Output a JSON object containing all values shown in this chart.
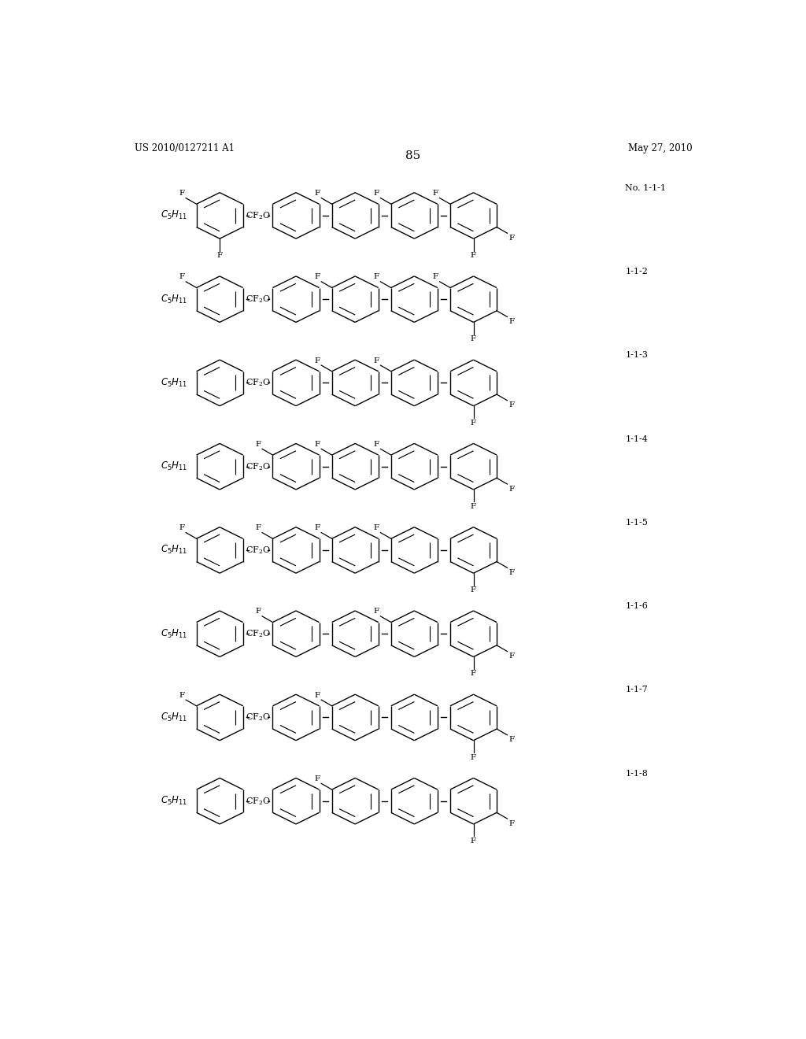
{
  "page_label_left": "US 2010/0127211 A1",
  "page_label_right": "May 27, 2010",
  "page_number": "85",
  "background_color": "#ffffff",
  "line_color": "#000000",
  "text_color": "#000000",
  "structures": [
    {
      "label": "No. 1-1-1",
      "r1_ft": true,
      "r1_fb": true,
      "r2_ft": false,
      "r2_fb": false,
      "r3_ft": true,
      "r3_fb": false,
      "r4_ft": true,
      "r4_fb": false,
      "r5_ft": true,
      "r5_fm": true,
      "r5_fb": true
    },
    {
      "label": "1-1-2",
      "r1_ft": true,
      "r1_fb": false,
      "r2_ft": false,
      "r2_fb": false,
      "r3_ft": true,
      "r3_fb": false,
      "r4_ft": true,
      "r4_fb": false,
      "r5_ft": true,
      "r5_fm": true,
      "r5_fb": true
    },
    {
      "label": "1-1-3",
      "r1_ft": false,
      "r1_fb": false,
      "r2_ft": false,
      "r2_fb": false,
      "r3_ft": true,
      "r3_fb": false,
      "r4_ft": true,
      "r4_fb": false,
      "r5_ft": false,
      "r5_fm": true,
      "r5_fb": true
    },
    {
      "label": "1-1-4",
      "r1_ft": false,
      "r1_fb": false,
      "r2_ft": true,
      "r2_fb": false,
      "r3_ft": true,
      "r3_fb": false,
      "r4_ft": true,
      "r4_fb": false,
      "r5_ft": false,
      "r5_fm": true,
      "r5_fb": true
    },
    {
      "label": "1-1-5",
      "r1_ft": true,
      "r1_fb": false,
      "r2_ft": true,
      "r2_fb": false,
      "r3_ft": true,
      "r3_fb": false,
      "r4_ft": true,
      "r4_fb": false,
      "r5_ft": false,
      "r5_fm": true,
      "r5_fb": true
    },
    {
      "label": "1-1-6",
      "r1_ft": false,
      "r1_fb": false,
      "r2_ft": true,
      "r2_fb": false,
      "r3_ft": false,
      "r3_fb": false,
      "r4_ft": true,
      "r4_fb": false,
      "r5_ft": false,
      "r5_fm": true,
      "r5_fb": true
    },
    {
      "label": "1-1-7",
      "r1_ft": true,
      "r1_fb": false,
      "r2_ft": false,
      "r2_fb": false,
      "r3_ft": true,
      "r3_fb": false,
      "r4_ft": false,
      "r4_fb": false,
      "r5_ft": false,
      "r5_fm": true,
      "r5_fb": true
    },
    {
      "label": "1-1-8",
      "r1_ft": false,
      "r1_fb": false,
      "r2_ft": false,
      "r2_fb": false,
      "r3_ft": true,
      "r3_fb": false,
      "r4_ft": false,
      "r4_fb": false,
      "r5_ft": false,
      "r5_fm": true,
      "r5_fb": true
    }
  ]
}
